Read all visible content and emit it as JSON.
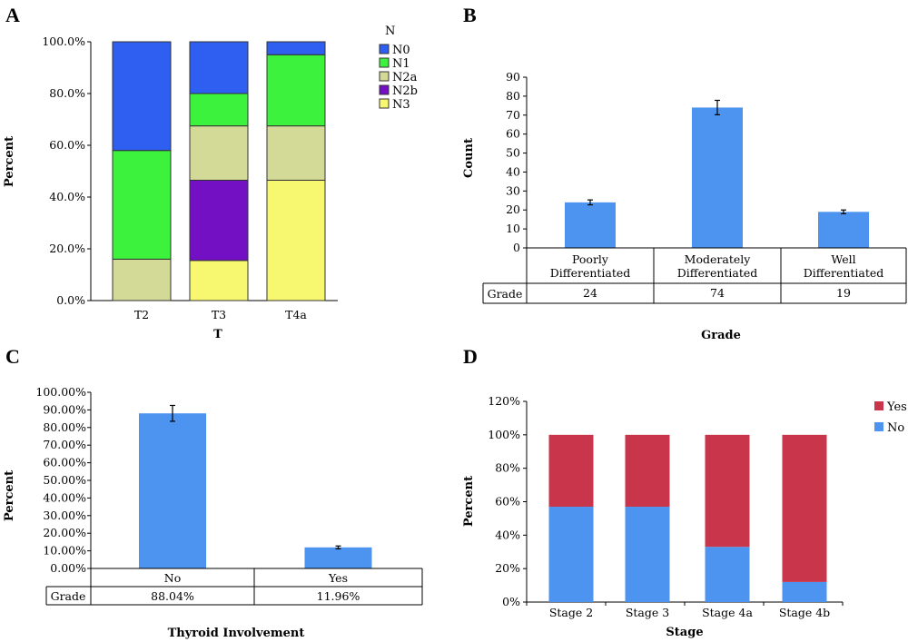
{
  "chart_data": [
    {
      "panel": "A",
      "type": "bar",
      "stacked": true,
      "categories": [
        "T2",
        "T3",
        "T4a"
      ],
      "xlabel": "T",
      "ylabel": "Percent",
      "ylim": [
        0,
        100
      ],
      "yticks": [
        "0.0%",
        "20.0%",
        "40.0%",
        "60.0%",
        "80.0%",
        "100.0%"
      ],
      "legend_title": "N",
      "legend_position": "right",
      "series": [
        {
          "name": "N3",
          "values": [
            0,
            15.5,
            46.5
          ],
          "color": "#f8f870"
        },
        {
          "name": "N2b",
          "values": [
            0,
            31,
            0
          ],
          "color": "#7310c4"
        },
        {
          "name": "N2a",
          "values": [
            16,
            21,
            21
          ],
          "color": "#d3d996"
        },
        {
          "name": "N1",
          "values": [
            42,
            12.5,
            27.5
          ],
          "color": "#3cf23c"
        },
        {
          "name": "N0",
          "values": [
            42,
            20,
            5
          ],
          "color": "#2f5ff0"
        }
      ],
      "legend_order": [
        "N0",
        "N1",
        "N2a",
        "N2b",
        "N3"
      ]
    },
    {
      "panel": "B",
      "type": "bar",
      "categories": [
        "Poorly Differentiated",
        "Moderately Differentiated",
        "Well Differentiated"
      ],
      "values": [
        24,
        74,
        19
      ],
      "errors": [
        1.3,
        3.8,
        1.0
      ],
      "xlabel": "Grade",
      "ylabel": "Count",
      "ylim": [
        0,
        90
      ],
      "yticks": [
        "0",
        "10",
        "20",
        "30",
        "40",
        "50",
        "60",
        "70",
        "80",
        "90"
      ],
      "table_row_label": "Grade",
      "table_values": [
        "24",
        "74",
        "19"
      ],
      "color": "#4d94f0"
    },
    {
      "panel": "C",
      "type": "bar",
      "categories": [
        "No",
        "Yes"
      ],
      "values": [
        88.04,
        11.96
      ],
      "errors": [
        4.5,
        0.8
      ],
      "xlabel": "Thyroid Involvement",
      "ylabel": "Percent",
      "ylim": [
        0,
        100
      ],
      "yticks": [
        "0.00%",
        "10.00%",
        "20.00%",
        "30.00%",
        "40.00%",
        "50.00%",
        "60.00%",
        "70.00%",
        "80.00%",
        "90.00%",
        "100.00%"
      ],
      "table_row_label": "Grade",
      "table_values": [
        "88.04%",
        "11.96%"
      ],
      "color": "#4d94f0"
    },
    {
      "panel": "D",
      "type": "bar",
      "stacked": true,
      "categories": [
        "Stage 2",
        "Stage 3",
        "Stage 4a",
        "Stage 4b"
      ],
      "xlabel": "Stage",
      "ylabel": "Percent",
      "ylim": [
        0,
        120
      ],
      "yticks": [
        "0%",
        "20%",
        "40%",
        "60%",
        "80%",
        "100%",
        "120%"
      ],
      "legend_position": "right",
      "series": [
        {
          "name": "No",
          "values": [
            57,
            57,
            33,
            12
          ],
          "color": "#4d94f0"
        },
        {
          "name": "Yes",
          "values": [
            43,
            43,
            67,
            88
          ],
          "color": "#c9354a"
        }
      ],
      "legend_order": [
        "Yes",
        "No"
      ]
    }
  ]
}
